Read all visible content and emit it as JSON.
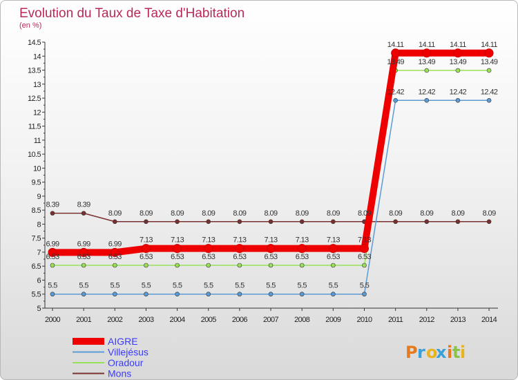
{
  "chart_data": {
    "type": "line",
    "title": "Evolution du Taux de Taxe d'Habitation",
    "subtitle": "(en %)",
    "xlabel": "",
    "ylabel": "",
    "categories": [
      "2000",
      "2001",
      "2002",
      "2003",
      "2004",
      "2005",
      "2006",
      "2007",
      "2008",
      "2009",
      "2010",
      "2011",
      "2012",
      "2013",
      "2014"
    ],
    "ylim": [
      5,
      14.5
    ],
    "yticks": [
      "5",
      "5.5",
      "6",
      "6.5",
      "7",
      "7.5",
      "8",
      "8.5",
      "9",
      "9.5",
      "10",
      "10.5",
      "11",
      "11.5",
      "12",
      "12.5",
      "13",
      "13.5",
      "14",
      "14.5"
    ],
    "grid": false,
    "legend_position": "bottom-left",
    "series": [
      {
        "name": "AIGRE",
        "color": "#ee0000",
        "values": [
          6.99,
          6.99,
          6.99,
          7.13,
          7.13,
          7.13,
          7.13,
          7.13,
          7.13,
          7.13,
          7.13,
          14.11,
          14.11,
          14.11,
          14.11
        ],
        "labels": [
          "6.99",
          "6.99",
          "6.99",
          "7.13",
          "7.13",
          "7.13",
          "7.13",
          "7.13",
          "7.13",
          "7.13",
          "7.13",
          "14.11",
          "14.11",
          "14.11",
          "14.11"
        ]
      },
      {
        "name": "Villejésus",
        "color": "#5b9bd5",
        "values": [
          5.5,
          5.5,
          5.5,
          5.5,
          5.5,
          5.5,
          5.5,
          5.5,
          5.5,
          5.5,
          5.5,
          12.42,
          12.42,
          12.42,
          12.42
        ],
        "labels": [
          "5.5",
          "5.5",
          "5.5",
          "5.5",
          "5.5",
          "5.5",
          "5.5",
          "5.5",
          "5.5",
          "5.5",
          "5.5",
          "12.42",
          "12.42",
          "12.42",
          "12.42"
        ]
      },
      {
        "name": "Oradour",
        "color": "#99e05a",
        "values": [
          6.53,
          6.53,
          6.53,
          6.53,
          6.53,
          6.53,
          6.53,
          6.53,
          6.53,
          6.53,
          6.53,
          13.49,
          13.49,
          13.49,
          13.49
        ],
        "labels": [
          "6.53",
          "6.53",
          "6.53",
          "6.53",
          "6.53",
          "6.53",
          "6.53",
          "6.53",
          "6.53",
          "6.53",
          "6.53",
          "13.49",
          "13.49",
          "13.49",
          "13.49"
        ]
      },
      {
        "name": "Mons",
        "color": "#7a3030",
        "values": [
          8.39,
          8.39,
          8.09,
          8.09,
          8.09,
          8.09,
          8.09,
          8.09,
          8.09,
          8.09,
          8.09,
          8.09,
          8.09,
          8.09,
          8.09
        ],
        "labels": [
          "8.39",
          "8.39",
          "8.09",
          "8.09",
          "8.09",
          "8.09",
          "8.09",
          "8.09",
          "8.09",
          "8.09",
          "8.09",
          "8.09",
          "8.09",
          "8.09",
          "8.09"
        ]
      }
    ]
  },
  "watermark": {
    "text": "Proxiti",
    "colors": [
      "#e87a1e",
      "#3aa0d8",
      "#e8b31e",
      "#3aa0d8",
      "#e87a1e",
      "#8bc34a",
      "#e8b31e"
    ]
  }
}
